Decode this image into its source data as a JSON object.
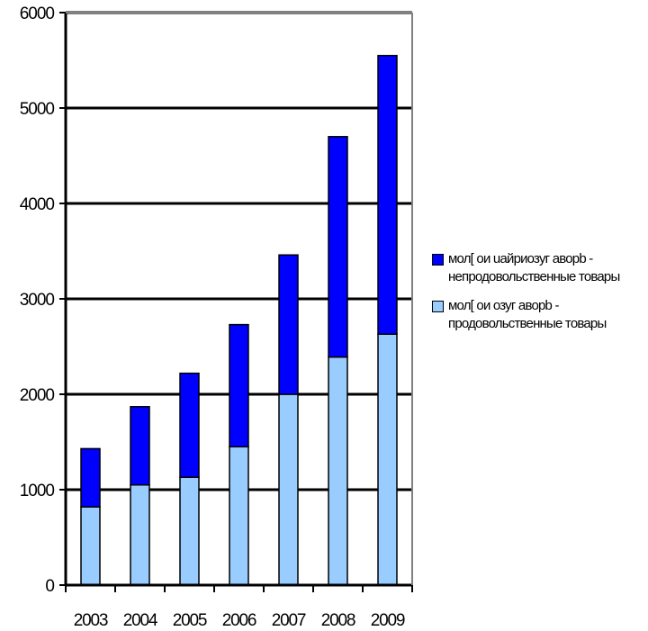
{
  "chart_data": {
    "type": "bar",
    "stacked": true,
    "categories": [
      "2003",
      "2004",
      "2005",
      "2006",
      "2007",
      "2008",
      "2009"
    ],
    "series": [
      {
        "name": "мол[ ои озуг аворb - продовольственные товары",
        "color": "#99ccff",
        "values": [
          820,
          1050,
          1130,
          1450,
          2000,
          2390,
          2630
        ]
      },
      {
        "name": "мол[ ои   uайриозуг аворb - непродовольственные товары",
        "color": "#0000ff",
        "values": [
          610,
          820,
          1090,
          1280,
          1460,
          2310,
          2920
        ]
      }
    ],
    "ylim": [
      0,
      6000
    ],
    "yticks": [
      "0",
      "1000",
      "2000",
      "3000",
      "4000",
      "5000",
      "6000"
    ],
    "grid": true,
    "legend_position": "right"
  }
}
